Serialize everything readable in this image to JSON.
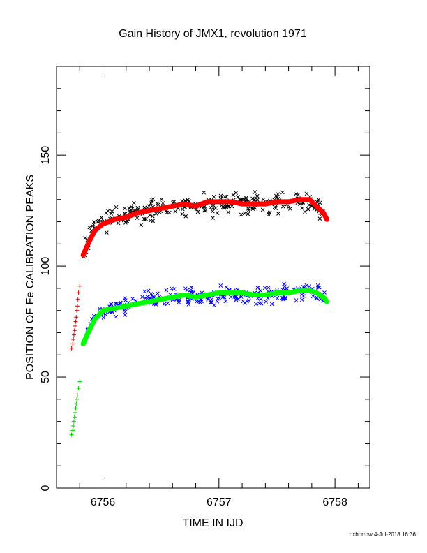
{
  "chart_data": {
    "type": "scatter",
    "title": "Gain History of JMX1, revolution 1971",
    "xlabel": "TIME IN IJD",
    "ylabel": "POSITION OF Fe CALIBRATION PEAKS",
    "xlim": [
      6755.6,
      6758.3
    ],
    "ylim": [
      0,
      190
    ],
    "x_ticks": [
      "6756",
      "6757",
      "6758"
    ],
    "y_ticks": [
      "0",
      "50",
      "100",
      "150"
    ],
    "grid": false,
    "series": [
      {
        "role": "upper peak, raw",
        "color": "#000000",
        "marker": "x",
        "x_range": [
          6755.83,
          6757.92
        ],
        "baseline": [
          [
            6755.83,
            106
          ],
          [
            6755.9,
            117
          ],
          [
            6756,
            120
          ],
          [
            6756.2,
            123
          ],
          [
            6756.4,
            125
          ],
          [
            6756.6,
            127
          ],
          [
            6756.8,
            127
          ],
          [
            6757,
            128
          ],
          [
            6757.2,
            128
          ],
          [
            6757.4,
            128
          ],
          [
            6757.6,
            129
          ],
          [
            6757.75,
            130
          ],
          [
            6757.85,
            126
          ],
          [
            6757.92,
            121
          ]
        ],
        "scatter": 4
      },
      {
        "role": "upper peak, fit",
        "color": "#ff0000",
        "marker": "line",
        "values": [
          [
            6755.83,
            105
          ],
          [
            6755.88,
            111
          ],
          [
            6755.93,
            116
          ],
          [
            6756,
            119
          ],
          [
            6756.1,
            121
          ],
          [
            6756.2,
            122
          ],
          [
            6756.3,
            124
          ],
          [
            6756.4,
            125
          ],
          [
            6756.5,
            126
          ],
          [
            6756.6,
            127
          ],
          [
            6756.7,
            128
          ],
          [
            6756.8,
            127
          ],
          [
            6756.9,
            129
          ],
          [
            6757,
            129
          ],
          [
            6757.1,
            129
          ],
          [
            6757.2,
            128
          ],
          [
            6757.3,
            128
          ],
          [
            6757.4,
            128
          ],
          [
            6757.5,
            129
          ],
          [
            6757.6,
            129
          ],
          [
            6757.7,
            130
          ],
          [
            6757.78,
            130
          ],
          [
            6757.84,
            127
          ],
          [
            6757.9,
            124
          ],
          [
            6757.93,
            121
          ]
        ]
      },
      {
        "role": "lower peak, raw",
        "color": "#0000ff",
        "marker": "x",
        "x_range": [
          6755.83,
          6757.92
        ],
        "baseline": [
          [
            6755.83,
            66
          ],
          [
            6755.9,
            76
          ],
          [
            6756,
            80
          ],
          [
            6756.2,
            82
          ],
          [
            6756.4,
            85
          ],
          [
            6756.6,
            86
          ],
          [
            6756.8,
            87
          ],
          [
            6757,
            87
          ],
          [
            6757.2,
            87
          ],
          [
            6757.4,
            87
          ],
          [
            6757.6,
            88
          ],
          [
            6757.75,
            89
          ],
          [
            6757.85,
            88
          ],
          [
            6757.92,
            85
          ]
        ],
        "scatter": 3
      },
      {
        "role": "lower peak, fit",
        "color": "#00ff00",
        "marker": "line",
        "values": [
          [
            6755.83,
            65
          ],
          [
            6755.88,
            71
          ],
          [
            6755.93,
            76
          ],
          [
            6756,
            80
          ],
          [
            6756.1,
            81
          ],
          [
            6756.2,
            82
          ],
          [
            6756.3,
            83
          ],
          [
            6756.4,
            84
          ],
          [
            6756.5,
            85
          ],
          [
            6756.6,
            86
          ],
          [
            6756.7,
            87
          ],
          [
            6756.8,
            86
          ],
          [
            6756.9,
            87
          ],
          [
            6757,
            88
          ],
          [
            6757.1,
            88
          ],
          [
            6757.2,
            88
          ],
          [
            6757.3,
            87
          ],
          [
            6757.4,
            87
          ],
          [
            6757.5,
            88
          ],
          [
            6757.6,
            88
          ],
          [
            6757.7,
            89
          ],
          [
            6757.78,
            89
          ],
          [
            6757.84,
            88
          ],
          [
            6757.9,
            86
          ],
          [
            6757.93,
            84
          ]
        ]
      },
      {
        "role": "upper peak, early",
        "color": "#cc0000",
        "marker": "+",
        "values": [
          [
            6755.73,
            63
          ],
          [
            6755.74,
            65
          ],
          [
            6755.745,
            67
          ],
          [
            6755.75,
            69
          ],
          [
            6755.755,
            71
          ],
          [
            6755.76,
            73
          ],
          [
            6755.765,
            75
          ],
          [
            6755.77,
            77
          ],
          [
            6755.775,
            80
          ],
          [
            6755.78,
            82
          ],
          [
            6755.785,
            85
          ],
          [
            6755.79,
            88
          ],
          [
            6755.8,
            91
          ]
        ]
      },
      {
        "role": "lower peak, early",
        "color": "#00cc00",
        "marker": "+",
        "values": [
          [
            6755.73,
            24
          ],
          [
            6755.74,
            26
          ],
          [
            6755.745,
            28
          ],
          [
            6755.75,
            30
          ],
          [
            6755.755,
            32
          ],
          [
            6755.76,
            34
          ],
          [
            6755.765,
            36
          ],
          [
            6755.77,
            38
          ],
          [
            6755.775,
            40
          ],
          [
            6755.78,
            42
          ],
          [
            6755.79,
            45
          ],
          [
            6755.8,
            48
          ]
        ]
      }
    ]
  },
  "footer": {
    "stamp": "oxborrow  4-Jul-2018 16:36"
  }
}
